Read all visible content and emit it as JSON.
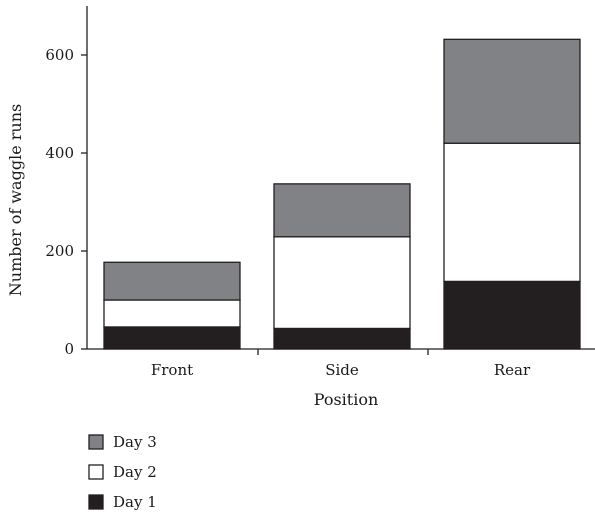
{
  "chart_data": {
    "type": "bar",
    "stacked": true,
    "categories": [
      "Front",
      "Side",
      "Rear"
    ],
    "series": [
      {
        "name": "Day 1",
        "values": [
          45,
          42,
          138
        ],
        "color": "#231f20"
      },
      {
        "name": "Day 2",
        "values": [
          55,
          187,
          282
        ],
        "color": "#ffffff"
      },
      {
        "name": "Day 3",
        "values": [
          77,
          108,
          212
        ],
        "color": "#808285"
      }
    ],
    "xlabel": "Position",
    "ylabel": "Number of waggle runs",
    "ylim": [
      0,
      700
    ],
    "yticks": [
      0,
      200,
      400,
      600
    ],
    "grid": false,
    "legend_order": [
      "Day 3",
      "Day 2",
      "Day 1"
    ],
    "legend_position": "bottom-left"
  }
}
